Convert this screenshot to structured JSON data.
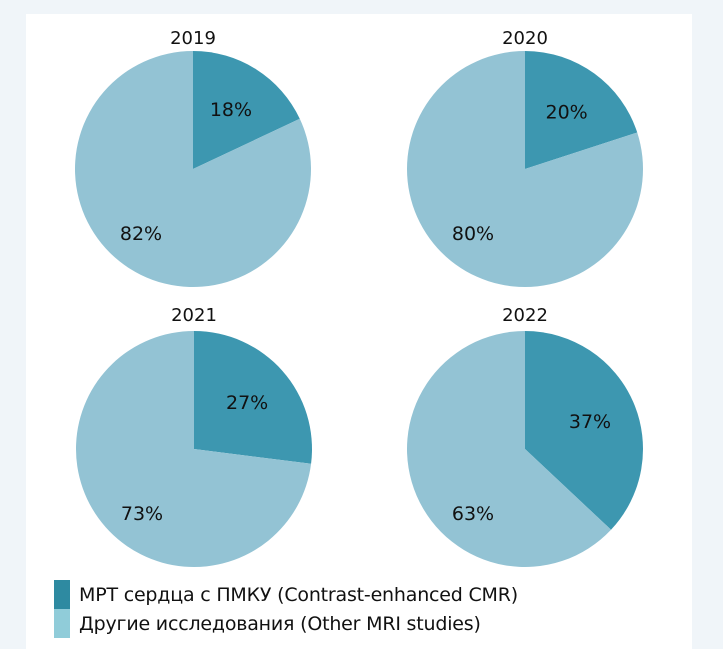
{
  "colors": {
    "page_bg": "#f0f5f9",
    "card_bg": "#ffffff",
    "cmr_slice": "#3d97b0",
    "other_slice": "#93c3d4",
    "cmr_swatch": "#2e8aa1",
    "other_swatch": "#90ccd9",
    "text": "#111111"
  },
  "chart_data": [
    {
      "type": "pie",
      "title": "2019",
      "categories": [
        "МРТ сердца с ПМКУ (Contrast-enhanced CMR)",
        "Другие исследования (Other MRI studies)"
      ],
      "values": [
        18,
        82
      ],
      "labels": [
        "18%",
        "82%"
      ]
    },
    {
      "type": "pie",
      "title": "2020",
      "categories": [
        "МРТ сердца с ПМКУ (Contrast-enhanced CMR)",
        "Другие исследования (Other MRI studies)"
      ],
      "values": [
        20,
        80
      ],
      "labels": [
        "20%",
        "80%"
      ]
    },
    {
      "type": "pie",
      "title": "2021",
      "categories": [
        "МРТ сердца с ПМКУ (Contrast-enhanced CMR)",
        "Другие исследования (Other MRI studies)"
      ],
      "values": [
        27,
        73
      ],
      "labels": [
        "27%",
        "73%"
      ]
    },
    {
      "type": "pie",
      "title": "2022",
      "categories": [
        "МРТ сердца с ПМКУ (Contrast-enhanced CMR)",
        "Другие исследования (Other MRI studies)"
      ],
      "values": [
        37,
        63
      ],
      "labels": [
        "37%",
        "63%"
      ]
    }
  ],
  "legend": {
    "placement": "bottom-left",
    "items": [
      {
        "label": "МРТ сердца с ПМКУ (Contrast-enhanced CMR)",
        "series": "cmr"
      },
      {
        "label": "Другие исследования (Other MRI studies)",
        "series": "other"
      }
    ]
  }
}
